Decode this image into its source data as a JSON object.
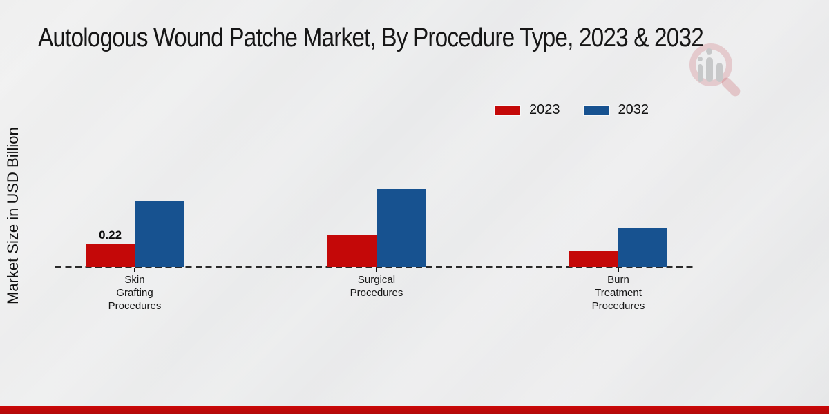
{
  "chart_data": {
    "type": "bar",
    "title": "Autologous Wound Patche Market, By Procedure Type, 2023 & 2032",
    "ylabel": "Market Size in USD Billion",
    "units": "USD Billion",
    "categories": [
      "Skin\nGrafting\nProcedures",
      "Surgical\nProcedures",
      "Burn\nTreatment\nProcedures"
    ],
    "series": [
      {
        "name": "2023",
        "color": "#c40808",
        "values": [
          0.22,
          0.31,
          0.15
        ]
      },
      {
        "name": "2032",
        "color": "#175290",
        "values": [
          0.64,
          0.75,
          0.37
        ]
      }
    ],
    "data_labels": [
      {
        "series_index": 0,
        "category_index": 0,
        "text": "0.22"
      }
    ],
    "legend_position": "top-right",
    "grid": false,
    "baseline_style": "dashed",
    "ylim": [
      0,
      0.8
    ]
  },
  "colors": {
    "accent_red": "#c40808",
    "accent_blue": "#175290",
    "bottom_bar": "#c20707",
    "background": "#e9eaeb",
    "text": "#161616",
    "watermark_pink": "rgba(197,78,88,0.22)",
    "watermark_gray": "#c7c8c9"
  }
}
